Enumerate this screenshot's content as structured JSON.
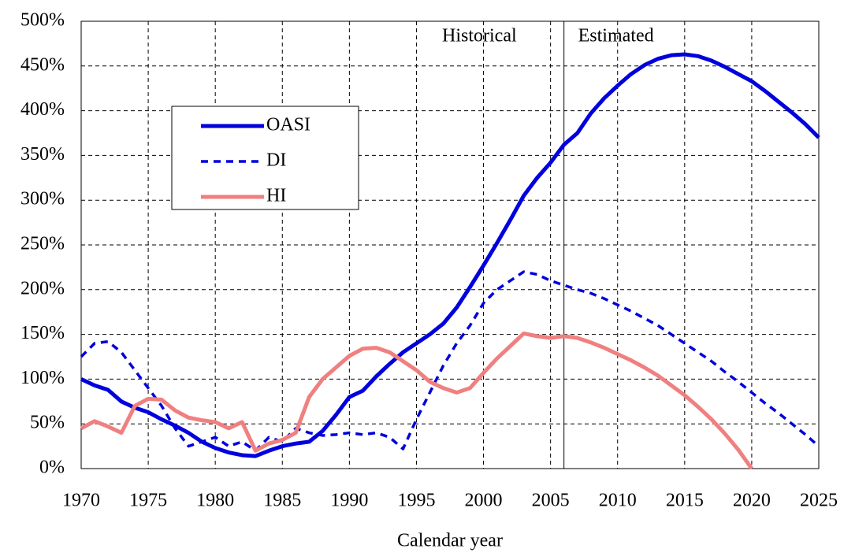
{
  "chart_data": {
    "type": "line",
    "x_label": "Calendar year",
    "annotations": [
      "Historical",
      "Estimated"
    ],
    "divider_x": 2006,
    "x": [
      1970,
      1971,
      1972,
      1973,
      1974,
      1975,
      1976,
      1977,
      1978,
      1979,
      1980,
      1981,
      1982,
      1983,
      1984,
      1985,
      1986,
      1987,
      1988,
      1989,
      1990,
      1991,
      1992,
      1993,
      1994,
      1995,
      1996,
      1997,
      1998,
      1999,
      2000,
      2001,
      2002,
      2003,
      2004,
      2005,
      2006,
      2007,
      2008,
      2009,
      2010,
      2011,
      2012,
      2013,
      2014,
      2015,
      2016,
      2017,
      2018,
      2019,
      2020,
      2021,
      2022,
      2023,
      2024,
      2025
    ],
    "series": [
      {
        "name": "OASI",
        "color": "#0000dd",
        "dashed": false,
        "values": [
          100,
          93,
          88,
          75,
          68,
          63,
          55,
          48,
          40,
          30,
          23,
          18,
          15,
          14,
          20,
          25,
          28,
          30,
          42,
          60,
          80,
          87,
          103,
          117,
          130,
          140,
          150,
          162,
          180,
          203,
          227,
          252,
          278,
          305,
          325,
          342,
          362,
          375,
          397,
          414,
          428,
          441,
          451,
          458,
          462,
          463,
          461,
          456,
          449,
          441,
          433,
          422,
          410,
          398,
          385,
          370
        ]
      },
      {
        "name": "DI",
        "color": "#0000dd",
        "dashed": true,
        "values": [
          125,
          140,
          142,
          130,
          110,
          90,
          70,
          45,
          25,
          30,
          35,
          25,
          30,
          20,
          35,
          30,
          45,
          40,
          37,
          38,
          40,
          38,
          40,
          35,
          22,
          55,
          85,
          115,
          140,
          160,
          185,
          200,
          210,
          220,
          217,
          210,
          205,
          200,
          196,
          190,
          183,
          176,
          168,
          160,
          150,
          140,
          130,
          120,
          108,
          97,
          85,
          73,
          62,
          50,
          38,
          25
        ]
      },
      {
        "name": "HI",
        "color": "#f08080",
        "dashed": false,
        "values": [
          45,
          53,
          47,
          40,
          70,
          78,
          77,
          65,
          57,
          54,
          52,
          45,
          52,
          20,
          28,
          32,
          40,
          80,
          100,
          113,
          126,
          134,
          135,
          130,
          120,
          110,
          97,
          90,
          85,
          90,
          107,
          123,
          137,
          151,
          148,
          146,
          148,
          146,
          141,
          135,
          128,
          121,
          113,
          104,
          93,
          82,
          69,
          55,
          39,
          21,
          0,
          null,
          null,
          null,
          null,
          null
        ]
      }
    ],
    "xlim": [
      1970,
      2025
    ],
    "xticks": [
      1970,
      1975,
      1980,
      1985,
      1990,
      1995,
      2000,
      2005,
      2010,
      2015,
      2020,
      2025
    ],
    "ylim": [
      0,
      500
    ],
    "yticks": [
      {
        "value": 0,
        "label": "0%"
      },
      {
        "value": 50,
        "label": "50%"
      },
      {
        "value": 100,
        "label": "100%"
      },
      {
        "value": 150,
        "label": "150%"
      },
      {
        "value": 200,
        "label": "200%"
      },
      {
        "value": 250,
        "label": "250%"
      },
      {
        "value": 300,
        "label": "300%"
      },
      {
        "value": 350,
        "label": "350%"
      },
      {
        "value": 400,
        "label": "400%"
      },
      {
        "value": 450,
        "label": "450%"
      },
      {
        "value": 500,
        "label": "500%"
      }
    ],
    "grid": true,
    "legend": "upper left"
  }
}
